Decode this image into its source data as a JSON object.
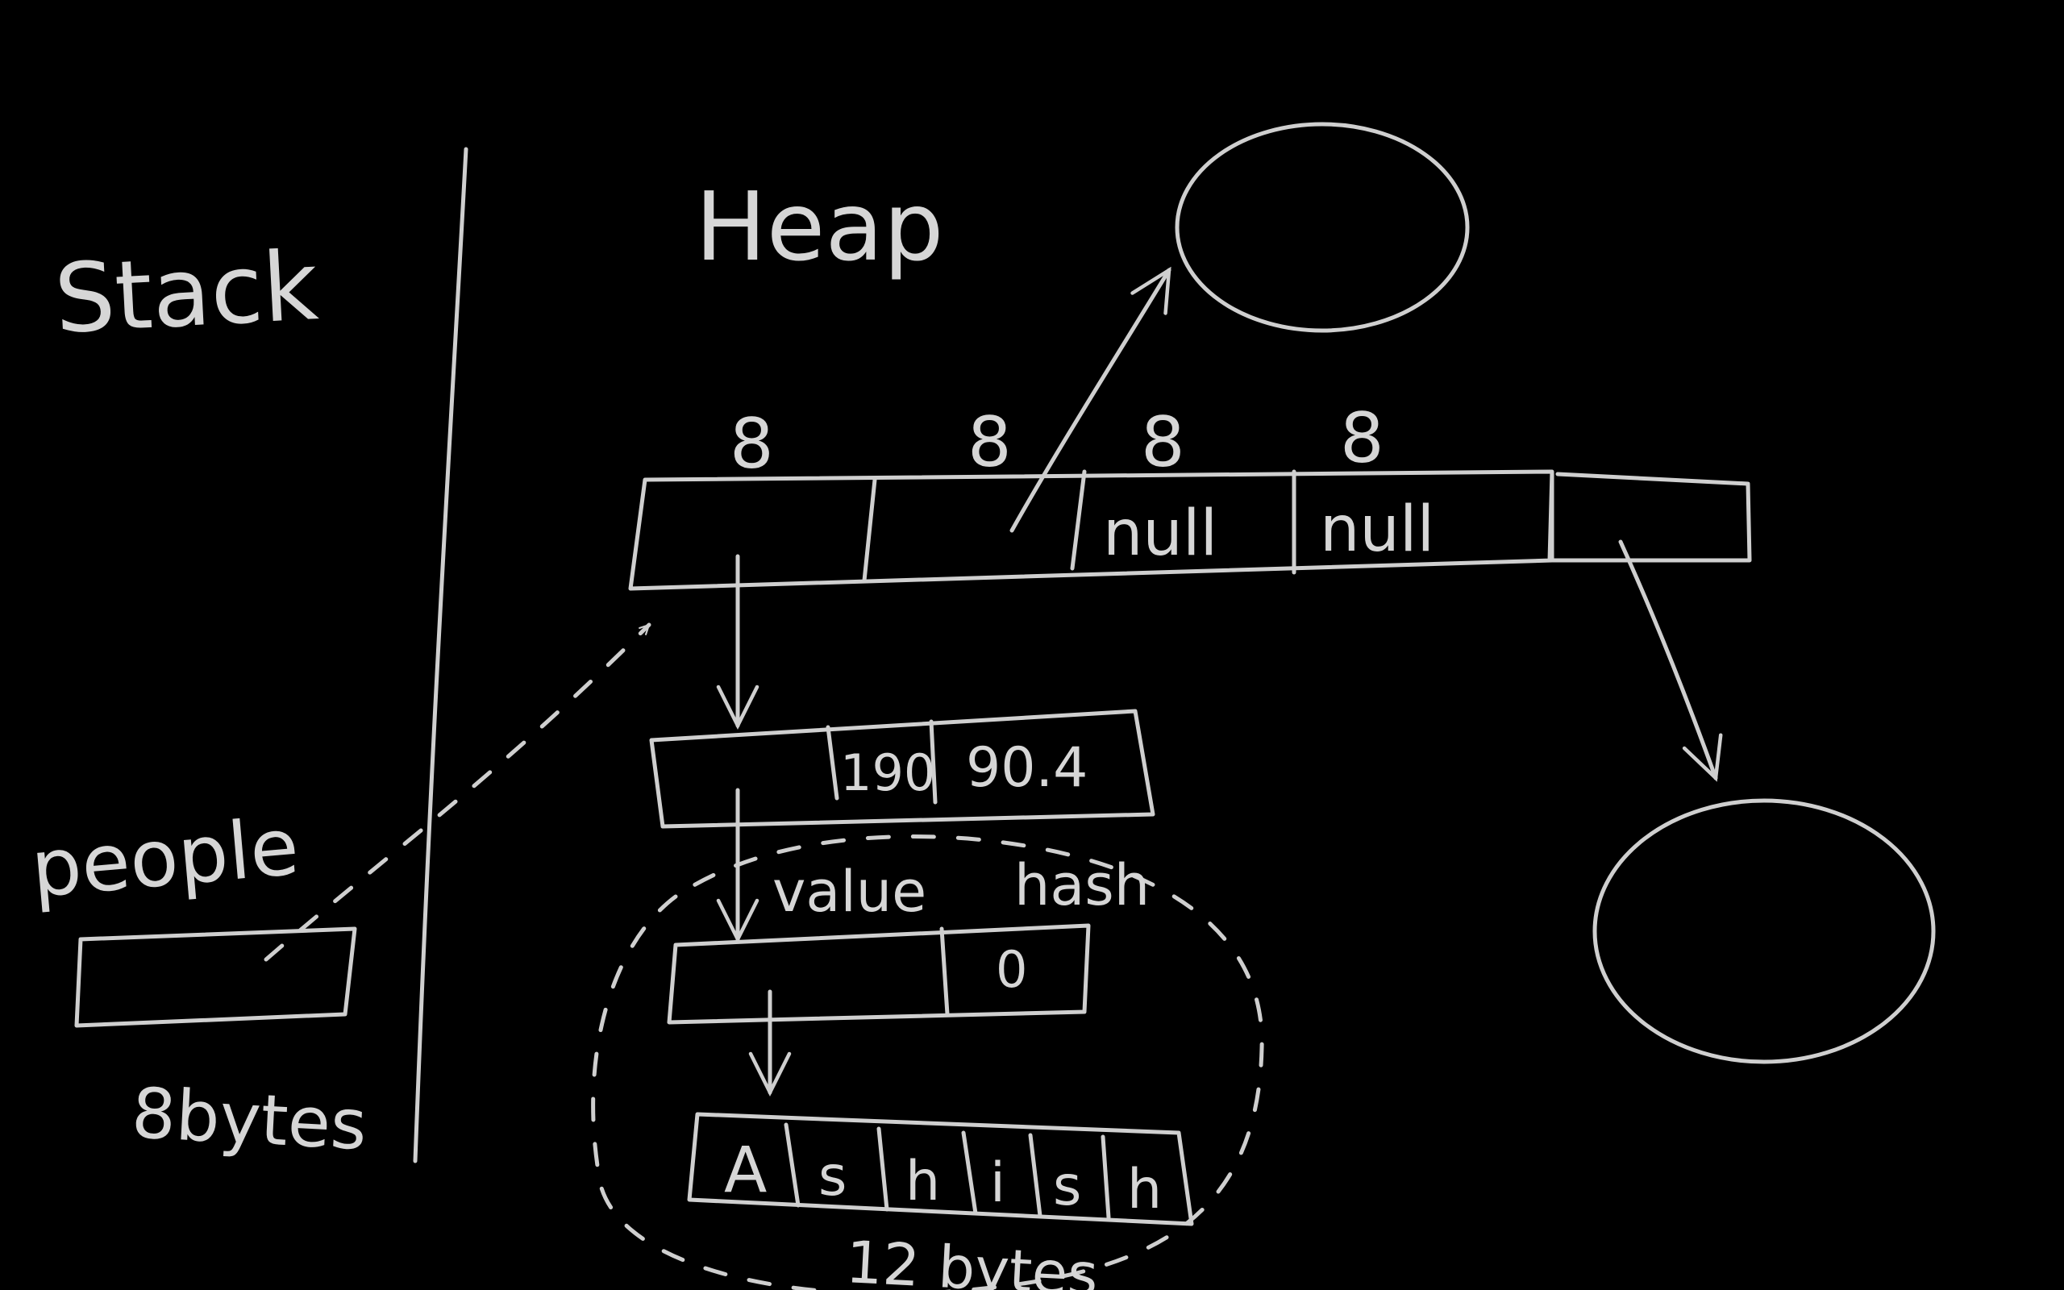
{
  "labels": {
    "stack": "Stack",
    "heap": "Heap",
    "people": "people",
    "people_size": "8bytes",
    "string_size": "12 bytes",
    "value": "value",
    "hash": "hash"
  },
  "heap_array": {
    "slot_sizes": [
      "8",
      "8",
      "8",
      "8"
    ],
    "slots": [
      "",
      "",
      "null",
      "null",
      ""
    ]
  },
  "object_record": {
    "fields": [
      "",
      "190",
      "90.4"
    ]
  },
  "string_object": {
    "fields": [
      "",
      "0"
    ]
  },
  "char_array": {
    "chars": [
      "A",
      "s",
      "h",
      "i",
      "s",
      "h"
    ]
  }
}
